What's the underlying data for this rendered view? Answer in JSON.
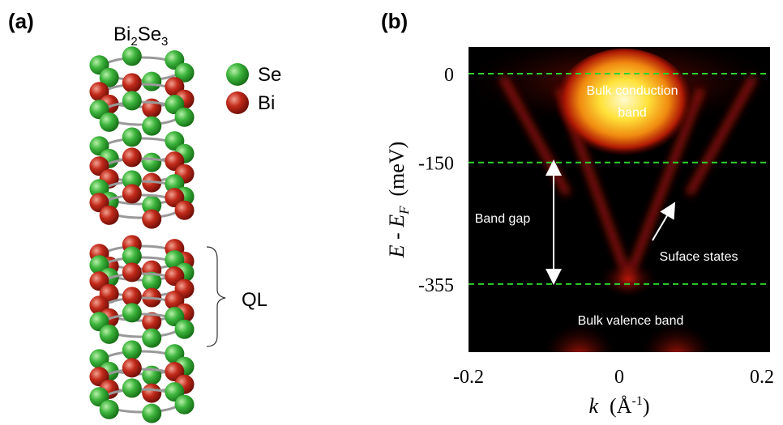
{
  "panel_a": {
    "label": "(a)",
    "title": {
      "main": "Bi",
      "sub1": "2",
      "main2": "Se",
      "sub2": "3"
    },
    "legend": [
      {
        "name": "Se",
        "color": "#2e9e2e"
      },
      {
        "name": "Bi",
        "color": "#b32418"
      }
    ],
    "bracket_label": "QL"
  },
  "chart_data": {
    "type": "intensity_map",
    "label": "(b)",
    "xlabel": {
      "main": "k",
      "unit_open": "(Å",
      "sup": "-1",
      "unit_close": ")"
    },
    "ylabel": {
      "main": "E - E",
      "sub": "F",
      "unit": "(meV)"
    },
    "xlim": [
      -0.2,
      0.2
    ],
    "xticks": [
      -0.2,
      0,
      0.2
    ],
    "ylim": [
      -470,
      45
    ],
    "yticks": [
      0,
      -150,
      -355
    ],
    "grid_color": "#2fd12f",
    "annotations": {
      "conduction": [
        "Bulk conduction",
        "band"
      ],
      "gap": "Band gap",
      "surface": "Suface states",
      "valence": "Bulk valence band"
    }
  }
}
